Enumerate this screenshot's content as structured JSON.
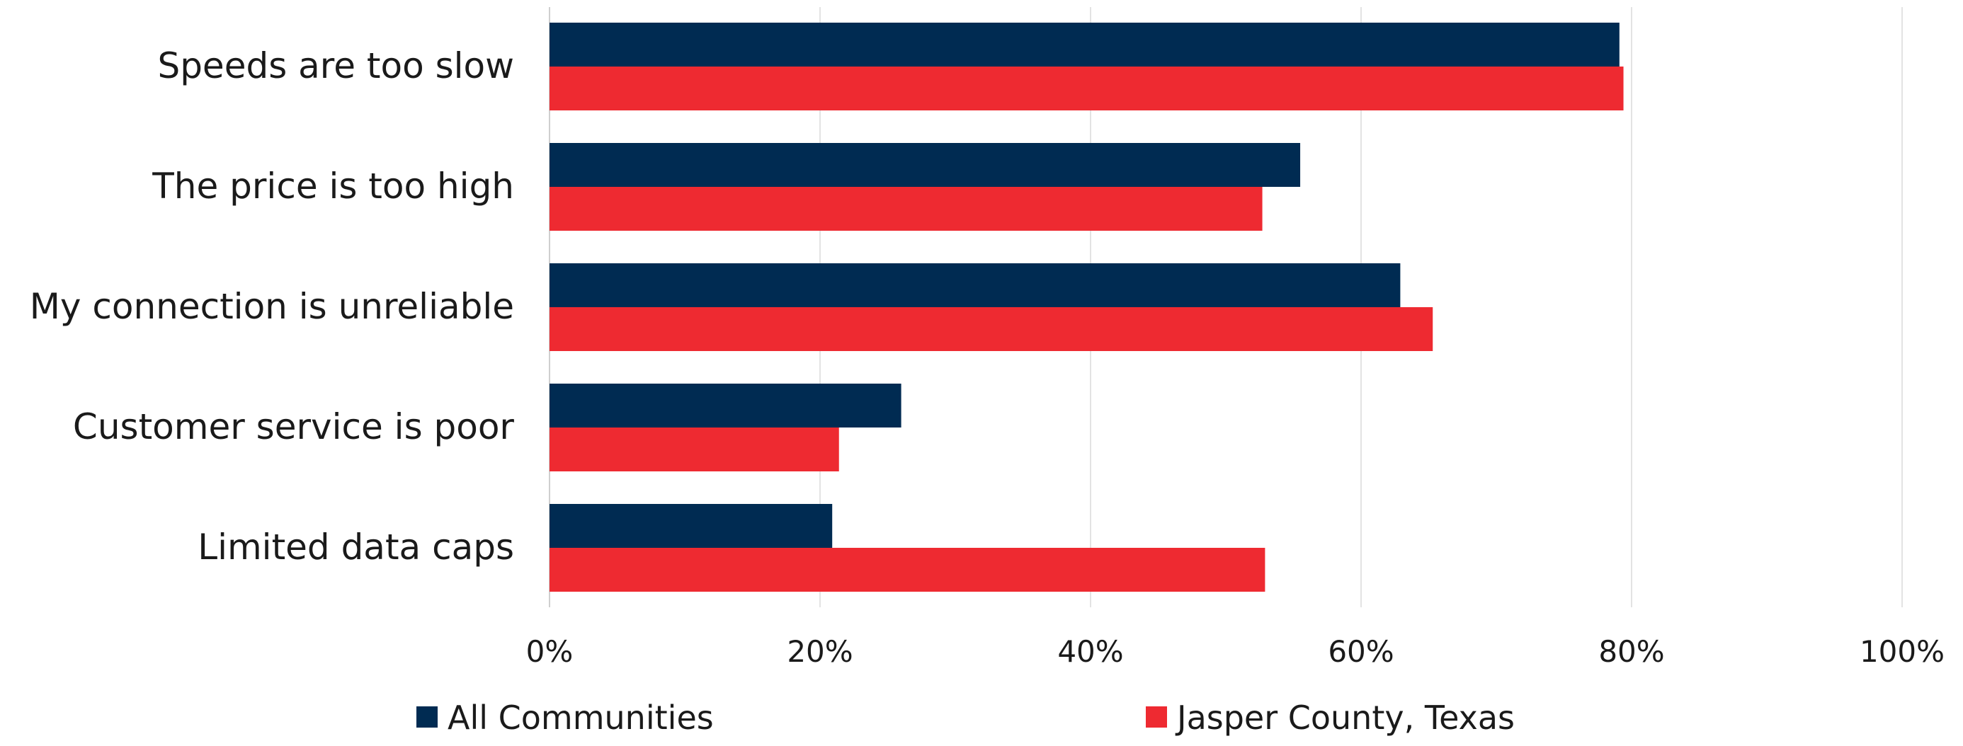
{
  "chart_data": {
    "type": "bar",
    "orientation": "horizontal",
    "categories": [
      "Speeds are too slow",
      "The price is too high",
      "My connection is unreliable",
      "Customer service is poor",
      "Limited data caps"
    ],
    "series": [
      {
        "name": "All Communities",
        "color": "#002B52",
        "values": [
          79.1,
          55.5,
          62.9,
          26.0,
          20.9
        ]
      },
      {
        "name": "Jasper County, Texas",
        "color": "#EE2A31",
        "values": [
          79.4,
          52.7,
          65.3,
          21.4,
          52.9
        ]
      }
    ],
    "xlim": [
      0,
      100
    ],
    "xticks": [
      0,
      20,
      40,
      60,
      80,
      100
    ],
    "xtick_labels": [
      "0%",
      "20%",
      "40%",
      "60%",
      "80%",
      "100%"
    ],
    "grid": "vertical",
    "legend": "bottom",
    "title": "",
    "xlabel": "",
    "ylabel": ""
  }
}
